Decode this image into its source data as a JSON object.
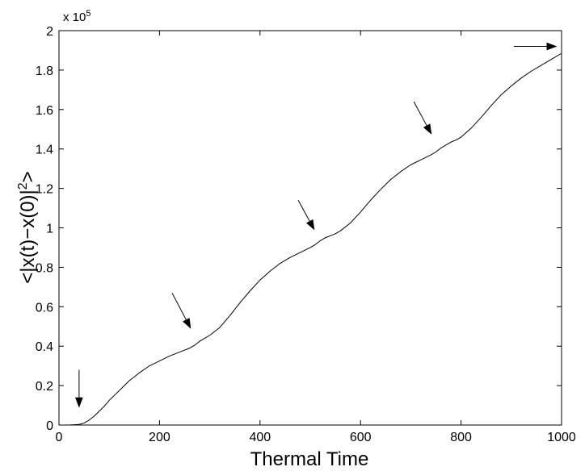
{
  "chart_data": {
    "type": "line",
    "title": "",
    "xlabel": "Thermal Time",
    "ylabel": "<|x(t)−x(0)|²>",
    "ylabel_parts": {
      "before": "<|x(t)−x(0)|",
      "sup": "2",
      "after": ">"
    },
    "scale_note": {
      "prefix": "x 10",
      "exponent": "5"
    },
    "xlim": [
      0,
      1000
    ],
    "ylim": [
      0,
      200000
    ],
    "xticks": [
      0,
      200,
      400,
      600,
      800,
      1000
    ],
    "yticks": [
      0,
      20000,
      40000,
      60000,
      80000,
      100000,
      120000,
      140000,
      160000,
      180000,
      200000
    ],
    "ytick_labels": [
      "0",
      "0.2",
      "0.4",
      "0.6",
      "0.8",
      "1",
      "1.2",
      "1.4",
      "1.6",
      "1.8",
      "2"
    ],
    "grid": false,
    "series": [
      {
        "x": [
          0,
          20,
          40,
          50,
          60,
          70,
          80,
          90,
          100,
          120,
          140,
          160,
          180,
          200,
          220,
          240,
          260,
          270,
          280,
          290,
          300,
          320,
          340,
          360,
          380,
          400,
          420,
          440,
          460,
          480,
          500,
          510,
          520,
          530,
          540,
          550,
          560,
          580,
          600,
          620,
          640,
          660,
          680,
          700,
          720,
          740,
          750,
          760,
          770,
          780,
          790,
          800,
          820,
          840,
          860,
          880,
          900,
          920,
          940,
          960,
          980,
          1000
        ],
        "y": [
          0,
          0,
          300,
          1000,
          2500,
          4500,
          7000,
          9500,
          12500,
          17500,
          22500,
          26500,
          30000,
          32500,
          35000,
          37000,
          39000,
          40500,
          42500,
          44000,
          45500,
          49500,
          55500,
          62000,
          68000,
          73500,
          78000,
          82000,
          85000,
          87500,
          90000,
          91500,
          93500,
          95000,
          96000,
          97000,
          98500,
          102500,
          108000,
          114000,
          119500,
          124500,
          128500,
          132000,
          134500,
          137000,
          138500,
          140500,
          142000,
          143500,
          144500,
          146000,
          150500,
          156000,
          162000,
          167500,
          172000,
          176000,
          179500,
          182500,
          185500,
          188500
        ]
      }
    ],
    "annotations": [
      {
        "type": "arrow",
        "from": [
          40,
          28000
        ],
        "to": [
          40,
          9000
        ]
      },
      {
        "type": "arrow",
        "from": [
          225,
          67000
        ],
        "to": [
          262,
          49000
        ]
      },
      {
        "type": "arrow",
        "from": [
          476,
          114000
        ],
        "to": [
          508,
          99000
        ]
      },
      {
        "type": "arrow",
        "from": [
          706,
          164000
        ],
        "to": [
          741,
          147500
        ]
      },
      {
        "type": "arrow",
        "from": [
          905,
          192000
        ],
        "to": [
          990,
          192000
        ]
      }
    ]
  }
}
